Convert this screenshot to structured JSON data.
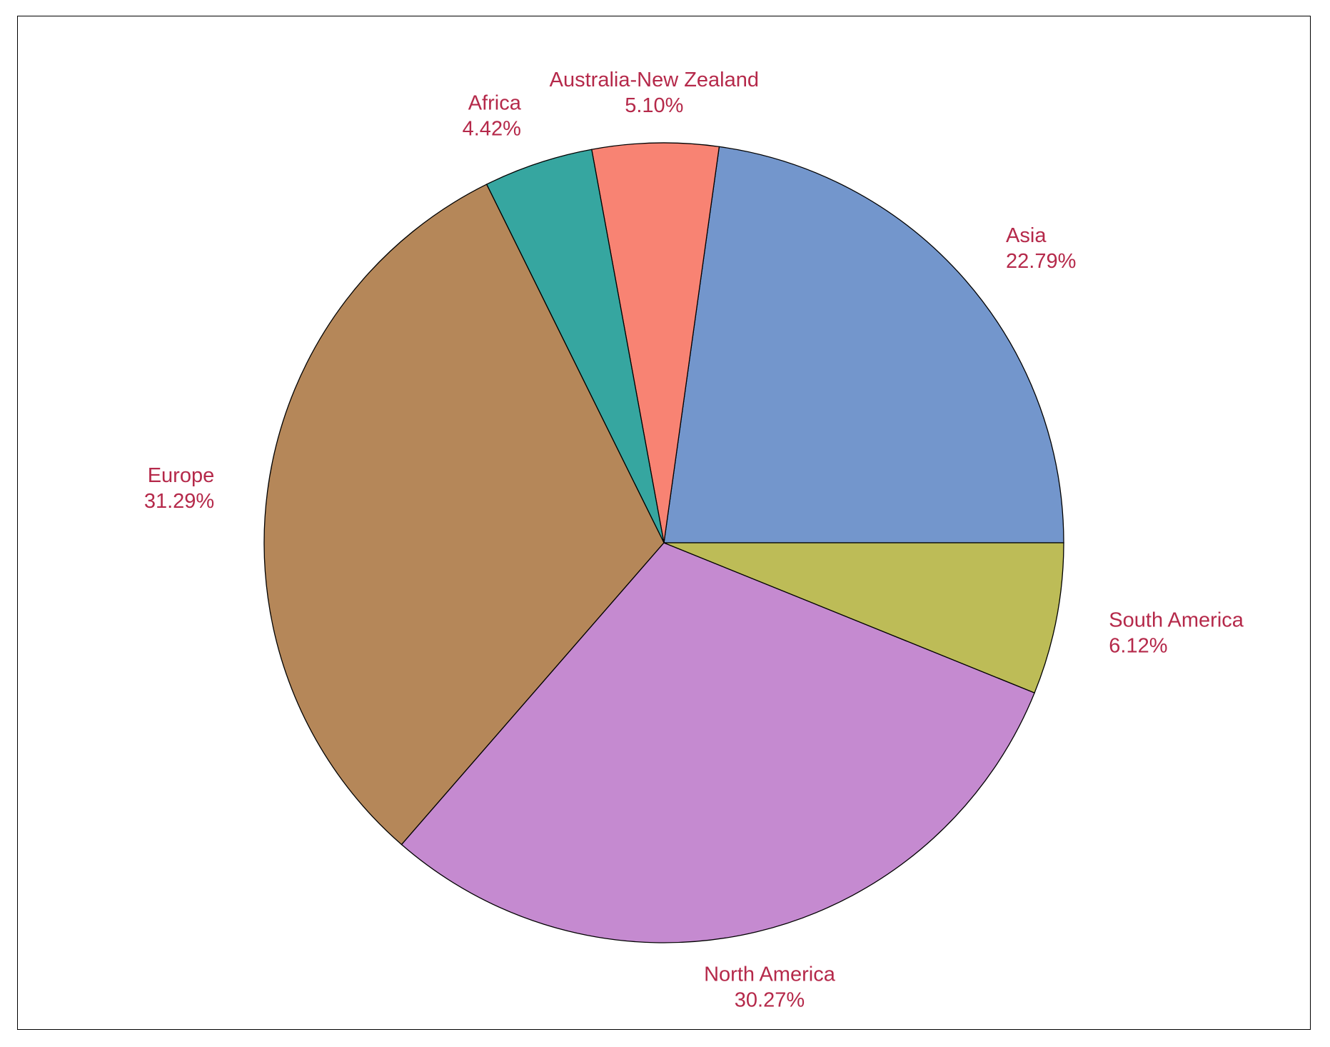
{
  "chart_data": {
    "type": "pie",
    "title": "",
    "label_color": "#B5294A",
    "edge_color": "#000000",
    "start_angle_deg": 0,
    "direction": "counterclockwise",
    "slices": [
      {
        "name": "Asia",
        "value": 22.79,
        "label": "22.79%",
        "color": "#7396CC"
      },
      {
        "name": "Australia-New Zealand",
        "value": 5.1,
        "label": "5.10%",
        "color": "#F88373"
      },
      {
        "name": "Africa",
        "value": 4.42,
        "label": "4.42%",
        "color": "#36A6A0"
      },
      {
        "name": "Europe",
        "value": 31.29,
        "label": "31.29%",
        "color": "#B58759"
      },
      {
        "name": "North America",
        "value": 30.27,
        "label": "30.27%",
        "color": "#C58AD0"
      },
      {
        "name": "South America",
        "value": 6.12,
        "label": "6.12%",
        "color": "#BDBC57"
      }
    ]
  }
}
